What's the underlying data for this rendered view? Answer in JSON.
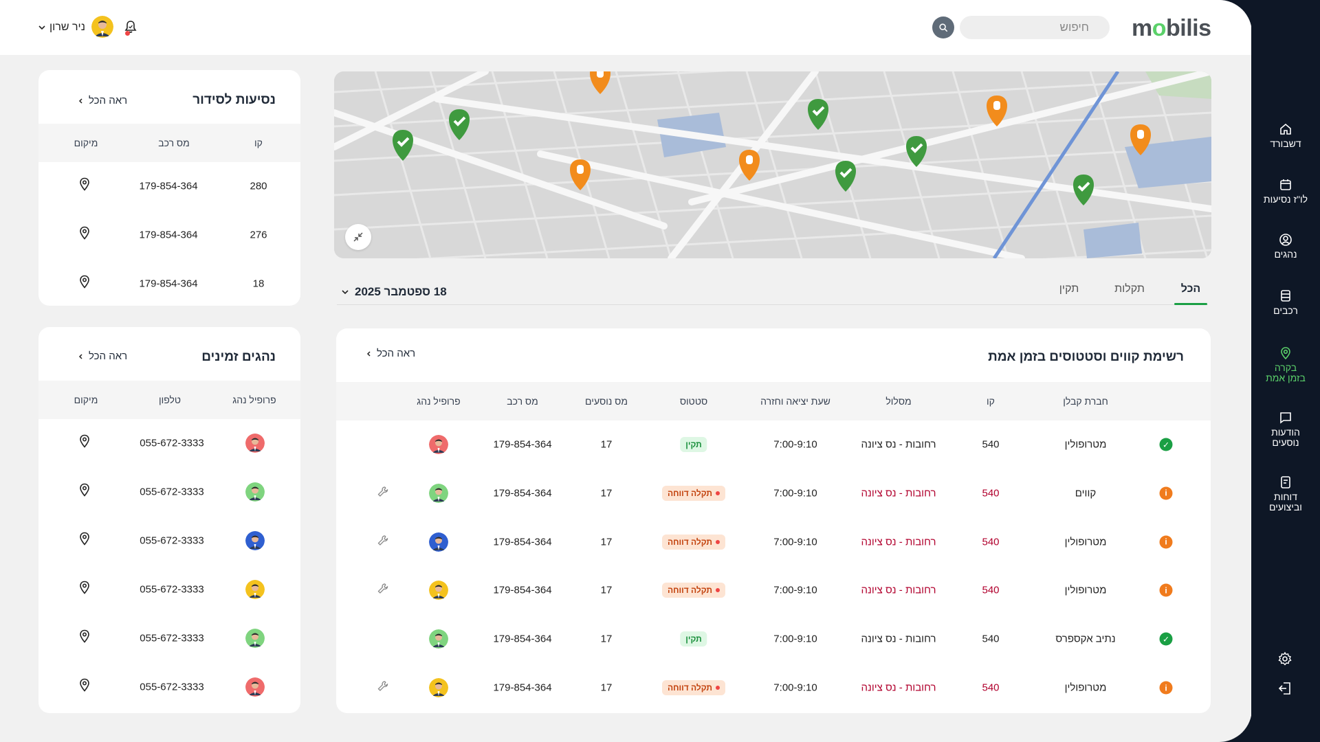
{
  "brand": {
    "logo_pre": "m",
    "logo_o": "o",
    "logo_post": "bilis"
  },
  "search": {
    "placeholder": "חיפוש"
  },
  "user": {
    "name": "ניר שרון"
  },
  "sidebar": {
    "items": [
      {
        "label": "דשבורד",
        "icon": "home-icon"
      },
      {
        "label": "לו\"ז נסיעות",
        "icon": "calendar-icon"
      },
      {
        "label": "נהגים",
        "icon": "user-circle-icon"
      },
      {
        "label": "רכבים",
        "icon": "bus-icon"
      },
      {
        "label_1": "בקרה",
        "label_2": "בזמן אמת",
        "icon": "location-pin-icon"
      },
      {
        "label_1": "הודעות",
        "label_2": "נוסעים",
        "icon": "message-icon"
      },
      {
        "label_1": "דוחות",
        "label_2": "וביצועים",
        "icon": "report-icon"
      }
    ],
    "active_color": "#5bd16a"
  },
  "tabs": [
    {
      "label": "הכל",
      "active": true
    },
    {
      "label": "תקלות",
      "active": false
    },
    {
      "label": "תקין",
      "active": false
    }
  ],
  "date_selector": {
    "value": "18 ספטמבר 2025"
  },
  "lines_table": {
    "title": "רשימת קווים וסטטוסים בזמן אמת",
    "see_all": "ראה הכל",
    "columns": [
      "חברת קבלן",
      "קו",
      "מסלול",
      "שעת יציאה וחזרה",
      "סטטוס",
      "מס נוסעים",
      "מס רכב",
      "פרופיל נהג"
    ],
    "rows": [
      {
        "indicator": "ok",
        "company": "מטרופולין",
        "line": "540",
        "route": "רחובות - נס ציונה",
        "time": "7:00-9:10",
        "status": "תקין",
        "status_type": "ok",
        "passengers": "17",
        "vehicle": "179-854-364",
        "avatar_color": "#ef6b6b",
        "wrench": false
      },
      {
        "indicator": "warn",
        "company": "קווים",
        "line": "540",
        "route": "רחובות - נס ציונה",
        "time": "7:00-9:10",
        "status": "תקלה דווחה",
        "status_type": "fault",
        "passengers": "17",
        "vehicle": "179-854-364",
        "avatar_color": "#7fd47f",
        "wrench": true
      },
      {
        "indicator": "warn",
        "company": "מטרופולין",
        "line": "540",
        "route": "רחובות - נס ציונה",
        "time": "7:00-9:10",
        "status": "תקלה דווחה",
        "status_type": "fault",
        "passengers": "17",
        "vehicle": "179-854-364",
        "avatar_color": "#2f5fd0",
        "wrench": true
      },
      {
        "indicator": "warn",
        "company": "מטרופולין",
        "line": "540",
        "route": "רחובות - נס ציונה",
        "time": "7:00-9:10",
        "status": "תקלה דווחה",
        "status_type": "fault",
        "passengers": "17",
        "vehicle": "179-854-364",
        "avatar_color": "#f4c21e",
        "wrench": true
      },
      {
        "indicator": "ok",
        "company": "נתיב אקספרס",
        "line": "540",
        "route": "רחובות - נס ציונה",
        "time": "7:00-9:10",
        "status": "תקין",
        "status_type": "ok",
        "passengers": "17",
        "vehicle": "179-854-364",
        "avatar_color": "#7fd47f",
        "wrench": false
      },
      {
        "indicator": "warn",
        "company": "מטרופולין",
        "line": "540",
        "route": "רחובות - נס ציונה",
        "time": "7:00-9:10",
        "status": "תקלה דווחה",
        "status_type": "fault",
        "passengers": "17",
        "vehicle": "179-854-364",
        "avatar_color": "#f4c21e",
        "wrench": true
      }
    ]
  },
  "trips_card": {
    "title": "נסיעות לסידור",
    "see_all": "ראה הכל",
    "columns": [
      "קו",
      "מס רכב",
      "מיקום"
    ],
    "rows": [
      {
        "line": "280",
        "vehicle": "179-854-364"
      },
      {
        "line": "276",
        "vehicle": "179-854-364"
      },
      {
        "line": "18",
        "vehicle": "179-854-364"
      }
    ]
  },
  "drivers_card": {
    "title": "נהגים זמינים",
    "see_all": "ראה הכל",
    "columns": [
      "פרופיל נהג",
      "טלפון",
      "מיקום"
    ],
    "rows": [
      {
        "phone": "055-672-3333",
        "avatar_color": "#ef6b6b"
      },
      {
        "phone": "055-672-3333",
        "avatar_color": "#7fd47f"
      },
      {
        "phone": "055-672-3333",
        "avatar_color": "#2f5fd0"
      },
      {
        "phone": "055-672-3333",
        "avatar_color": "#f4c21e"
      },
      {
        "phone": "055-672-3333",
        "avatar_color": "#7fd47f"
      },
      {
        "phone": "055-672-3333",
        "avatar_color": "#ef6b6b"
      }
    ]
  },
  "colors": {
    "ok": "#1a9f44",
    "warn": "#f07b1d",
    "marker_green": "#3f9a3f",
    "marker_orange": "#f28c1c"
  }
}
